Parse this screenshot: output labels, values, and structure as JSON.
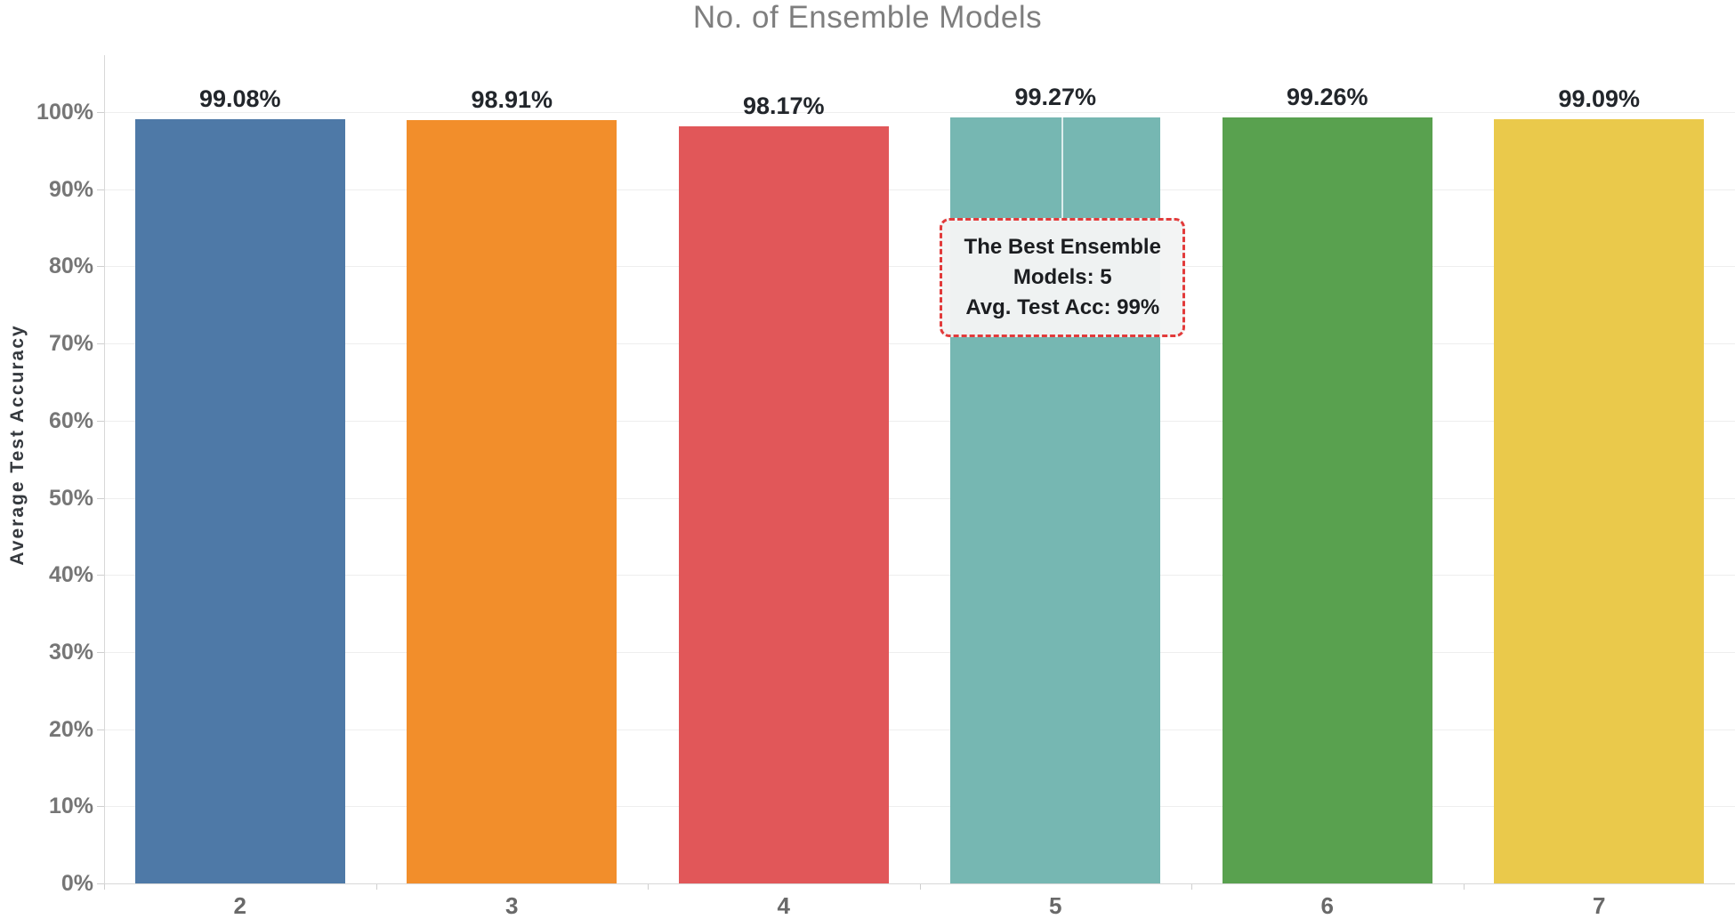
{
  "chart_data": {
    "type": "bar",
    "title": "No. of Ensemble Models",
    "xlabel": "",
    "ylabel": "Average Test Accuracy",
    "categories": [
      "2",
      "3",
      "4",
      "5",
      "6",
      "7"
    ],
    "values": [
      99.08,
      98.91,
      98.17,
      99.27,
      99.26,
      99.09
    ],
    "value_labels": [
      "99.08%",
      "98.91%",
      "98.17%",
      "99.27%",
      "99.26%",
      "99.09%"
    ],
    "bar_colors": [
      "#4e79a7",
      "#f28e2b",
      "#e15759",
      "#76b7b2",
      "#59a14f",
      "#eac94b"
    ],
    "y_tick_labels": [
      "100%",
      "90%",
      "80%",
      "70%",
      "60%",
      "50%",
      "40%",
      "30%",
      "20%",
      "10%",
      "0%"
    ],
    "y_tick_values": [
      100,
      90,
      80,
      70,
      60,
      50,
      40,
      30,
      20,
      10,
      0
    ],
    "ylim": [
      0,
      100
    ],
    "grid": true,
    "legend": "none",
    "annotation": {
      "lines": [
        "The Best Ensemble",
        "Models: 5",
        "Avg. Test Acc: 99%"
      ],
      "target_category": "5",
      "target_index": 3,
      "border_color": "#e23b3b",
      "background_color": "#f3f4f4"
    }
  }
}
